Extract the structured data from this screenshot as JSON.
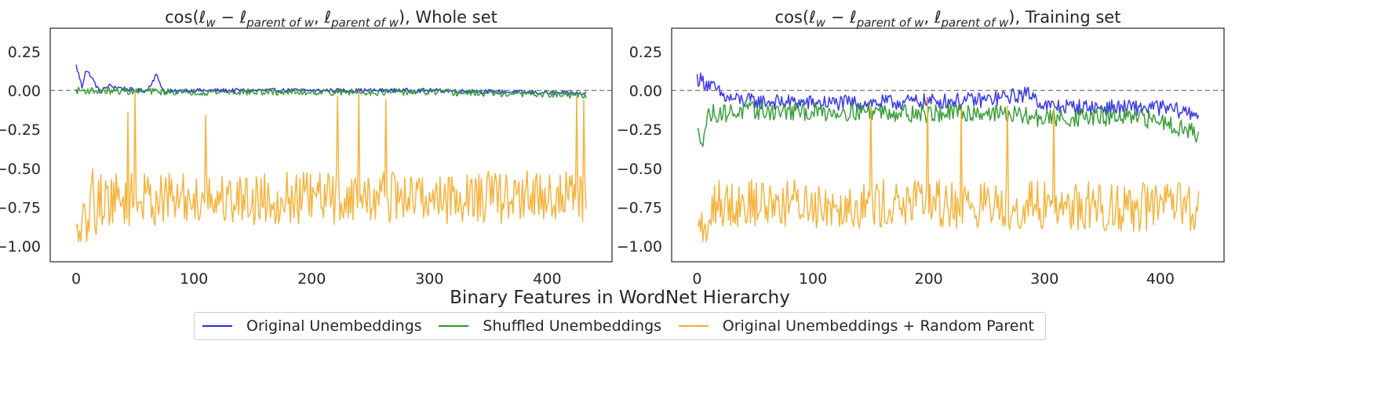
{
  "figure": {
    "xlabel": "Binary Features in WordNet Hierarchy"
  },
  "colors": {
    "original": "#2a2ae8",
    "shuffled": "#2a962a",
    "random_parent": "#f5ad2e",
    "zero_line": "#808080",
    "axes_frame": "#262626"
  },
  "legend": [
    {
      "name": "Original Unembeddings",
      "color_key": "original"
    },
    {
      "name": "Shuffled Unembeddings",
      "color_key": "shuffled"
    },
    {
      "name": "Original Unembeddings + Random Parent",
      "color_key": "random_parent"
    }
  ],
  "chart_data": [
    {
      "type": "line",
      "title": {
        "func": "cos(",
        "l": "ℓ",
        "sub_w": "w",
        "minus": " − ",
        "sub_parent": "parent of w",
        "comma": ", ",
        "close": ")",
        "suffix": ", Whole set"
      },
      "xlim": [
        -22,
        455
      ],
      "ylim": [
        -1.1,
        0.4
      ],
      "xticks": [
        0,
        100,
        200,
        300,
        400
      ],
      "xtick_labels": [
        "0",
        "100",
        "200",
        "300",
        "400"
      ],
      "yticks": [
        0.25,
        0.0,
        -0.25,
        -0.5,
        -0.75,
        -1.0
      ],
      "ytick_labels": [
        "0.25",
        "0.00",
        "−0.25",
        "−0.50",
        "−0.75",
        "−1.00"
      ],
      "reference_line": 0,
      "grid": false,
      "n_points": 434,
      "series": [
        {
          "name": "Original Unembeddings",
          "color_key": "original",
          "keypoints": [
            [
              0,
              0.16
            ],
            [
              3,
              0.08
            ],
            [
              5,
              0.02
            ],
            [
              8,
              0.13
            ],
            [
              12,
              0.1
            ],
            [
              20,
              -0.01
            ],
            [
              28,
              0.03
            ],
            [
              50,
              0.0
            ],
            [
              60,
              0.0
            ],
            [
              68,
              0.1
            ],
            [
              75,
              -0.01
            ],
            [
              100,
              0.0
            ],
            [
              200,
              0.0
            ],
            [
              300,
              0.0
            ],
            [
              433,
              -0.02
            ]
          ],
          "noise": 0.014
        },
        {
          "name": "Shuffled Unembeddings",
          "color_key": "shuffled",
          "keypoints": [
            [
              2,
              0.0
            ],
            [
              100,
              -0.01
            ],
            [
              200,
              -0.01
            ],
            [
              300,
              -0.01
            ],
            [
              433,
              -0.03
            ]
          ],
          "noise": 0.022
        },
        {
          "name": "Original Unembeddings + Random Parent",
          "color_key": "random_parent",
          "keypoints": [
            [
              0,
              -0.96
            ],
            [
              2,
              -0.98
            ],
            [
              5,
              -0.88
            ],
            [
              8,
              -0.9
            ],
            [
              10,
              -0.94
            ],
            [
              13,
              -0.58
            ],
            [
              16,
              -0.78
            ],
            [
              20,
              -0.7
            ],
            [
              433,
              -0.68
            ]
          ],
          "noise": 0.17,
          "min": -0.97,
          "max": -0.01,
          "spikes": [
            [
              44,
              -0.14
            ],
            [
              50,
              0.0
            ],
            [
              110,
              -0.16
            ],
            [
              222,
              -0.04
            ],
            [
              240,
              0.0
            ],
            [
              263,
              -0.06
            ],
            [
              425,
              -0.04
            ],
            [
              431,
              -0.06
            ]
          ]
        }
      ]
    },
    {
      "type": "line",
      "title": {
        "func": "cos(",
        "l": "ℓ",
        "sub_w": "w",
        "minus": " − ",
        "sub_parent": "parent of w",
        "comma": ", ",
        "close": ")",
        "suffix": ", Training set"
      },
      "xlim": [
        -22,
        455
      ],
      "ylim": [
        -1.1,
        0.4
      ],
      "xticks": [
        0,
        100,
        200,
        300,
        400
      ],
      "xtick_labels": [
        "0",
        "100",
        "200",
        "300",
        "400"
      ],
      "yticks": [
        0.25,
        0.0,
        -0.25,
        -0.5,
        -0.75,
        -1.0
      ],
      "ytick_labels": [
        "0.25",
        "0.00",
        "−0.25",
        "−0.50",
        "−0.75",
        "−1.00"
      ],
      "reference_line": 0,
      "grid": false,
      "n_points": 434,
      "series": [
        {
          "name": "Original Unembeddings",
          "color_key": "original",
          "keypoints": [
            [
              0,
              0.08
            ],
            [
              10,
              0.04
            ],
            [
              25,
              -0.05
            ],
            [
              50,
              -0.07
            ],
            [
              100,
              -0.08
            ],
            [
              150,
              -0.08
            ],
            [
              200,
              -0.07
            ],
            [
              250,
              -0.06
            ],
            [
              288,
              -0.02
            ],
            [
              300,
              -0.1
            ],
            [
              350,
              -0.11
            ],
            [
              400,
              -0.11
            ],
            [
              433,
              -0.15
            ]
          ],
          "noise": 0.05
        },
        {
          "name": "Shuffled Unembeddings",
          "color_key": "shuffled",
          "keypoints": [
            [
              0,
              -0.28
            ],
            [
              5,
              -0.3
            ],
            [
              10,
              -0.15
            ],
            [
              50,
              -0.13
            ],
            [
              100,
              -0.14
            ],
            [
              150,
              -0.13
            ],
            [
              200,
              -0.15
            ],
            [
              250,
              -0.14
            ],
            [
              300,
              -0.18
            ],
            [
              350,
              -0.17
            ],
            [
              400,
              -0.19
            ],
            [
              433,
              -0.28
            ]
          ],
          "noise": 0.06
        },
        {
          "name": "Original Unembeddings + Random Parent",
          "color_key": "random_parent",
          "keypoints": [
            [
              0,
              -0.96
            ],
            [
              3,
              -0.82
            ],
            [
              6,
              -0.97
            ],
            [
              10,
              -0.95
            ],
            [
              14,
              -0.7
            ],
            [
              20,
              -0.72
            ],
            [
              433,
              -0.75
            ]
          ],
          "noise": 0.16,
          "min": -0.97,
          "max": -0.05,
          "spikes": [
            [
              150,
              -0.1
            ],
            [
              199,
              -0.05
            ],
            [
              228,
              -0.12
            ],
            [
              268,
              -0.1
            ],
            [
              308,
              -0.12
            ]
          ]
        }
      ]
    }
  ]
}
